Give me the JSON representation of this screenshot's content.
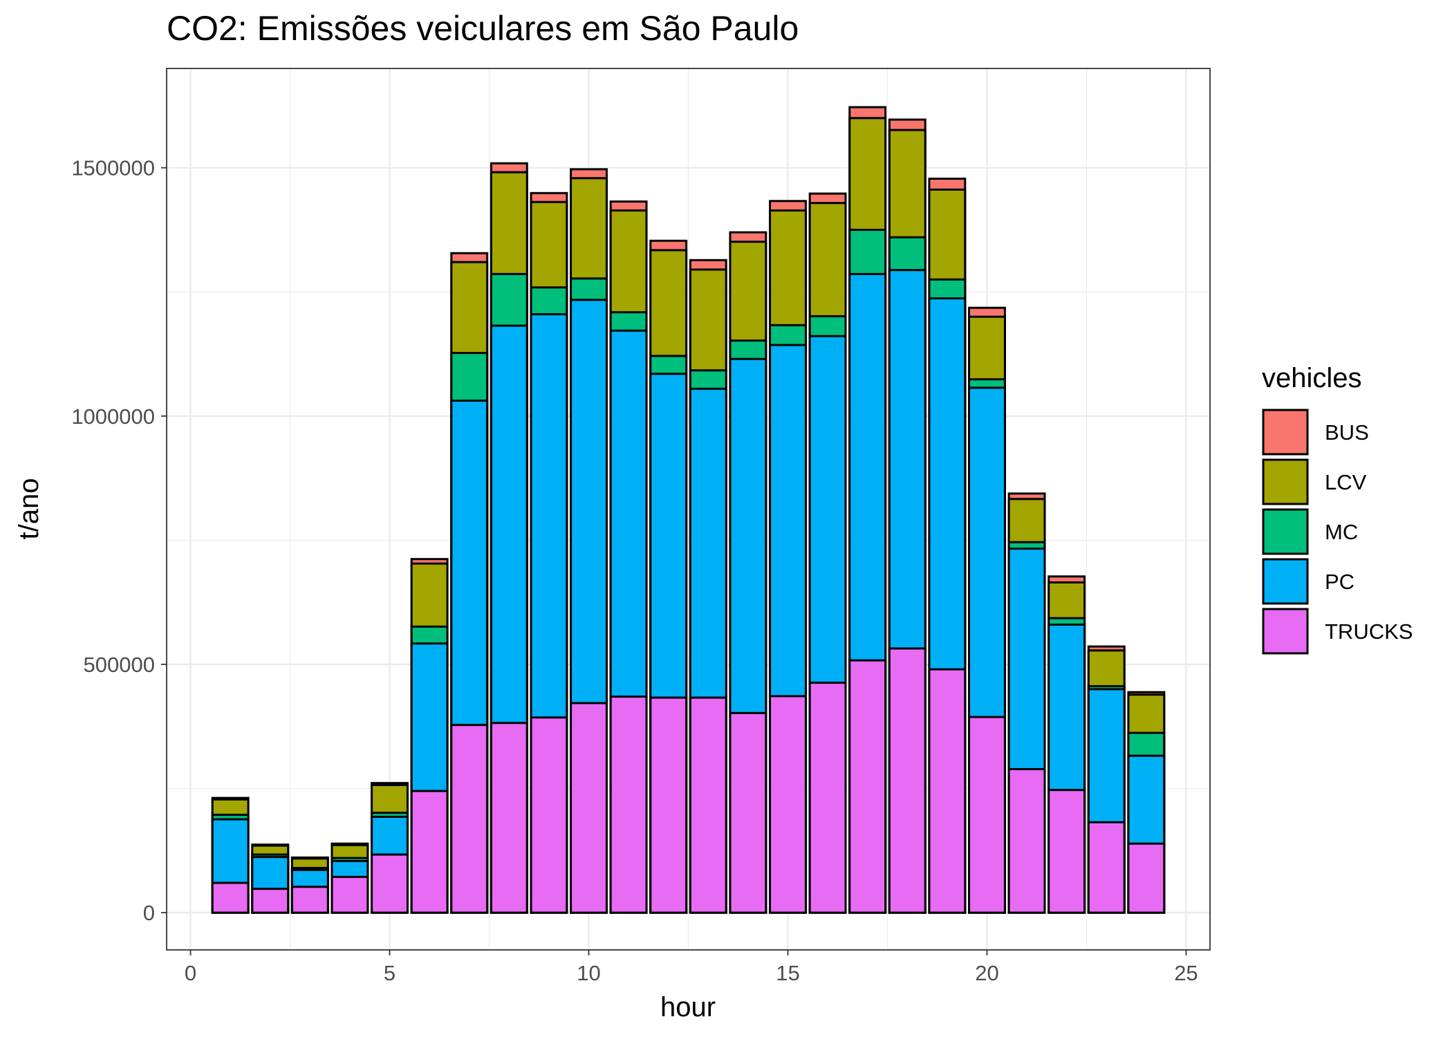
{
  "chart_data": {
    "type": "bar",
    "stacked": true,
    "title": "CO2: Emissões veiculares em São Paulo",
    "xlabel": "hour",
    "ylabel": "t/ano",
    "xlim": [
      -0.6,
      25.6
    ],
    "ylim": [
      -75000,
      1700000
    ],
    "x_ticks": [
      0,
      5,
      10,
      15,
      20,
      25
    ],
    "y_ticks": [
      0,
      500000,
      1000000,
      1500000
    ],
    "x_tick_labels": [
      "0",
      "5",
      "10",
      "15",
      "20",
      "25"
    ],
    "y_tick_labels": [
      "0",
      "500000",
      "1000000",
      "1500000"
    ],
    "grid": true,
    "legend_title": "vehicles",
    "legend_position": "right",
    "x": [
      1,
      2,
      3,
      4,
      5,
      6,
      7,
      8,
      9,
      10,
      11,
      12,
      13,
      14,
      15,
      16,
      17,
      18,
      19,
      20,
      21,
      22,
      23,
      24
    ],
    "series": [
      {
        "name": "TRUCKS",
        "color": "#E76BF3",
        "values": [
          60000,
          48000,
          52000,
          72000,
          117000,
          245000,
          378000,
          382000,
          393000,
          422000,
          435000,
          433000,
          433000,
          402000,
          436000,
          463000,
          508000,
          532000,
          490000,
          394000,
          289000,
          247000,
          182000,
          139000
        ]
      },
      {
        "name": "PC",
        "color": "#00B0F6",
        "values": [
          128000,
          64000,
          34000,
          32000,
          76000,
          297000,
          653000,
          800000,
          812000,
          812000,
          737000,
          652000,
          622000,
          713000,
          707000,
          698000,
          778000,
          762000,
          747000,
          663000,
          444000,
          333000,
          268000,
          177000
        ]
      },
      {
        "name": "MC",
        "color": "#00BF7D",
        "values": [
          9000,
          5000,
          4000,
          6000,
          8000,
          34000,
          96000,
          104000,
          54000,
          43000,
          37000,
          36000,
          37000,
          37000,
          40000,
          40000,
          89000,
          66000,
          38000,
          17000,
          13000,
          13000,
          6000,
          46000
        ]
      },
      {
        "name": "LCV",
        "color": "#A3A500",
        "values": [
          31000,
          18000,
          19000,
          26000,
          56000,
          127000,
          183000,
          205000,
          172000,
          202000,
          205000,
          213000,
          203000,
          199000,
          231000,
          228000,
          225000,
          216000,
          181000,
          126000,
          87000,
          72000,
          72000,
          77000
        ]
      },
      {
        "name": "BUS",
        "color": "#F8766D",
        "values": [
          3000,
          2000,
          2000,
          3000,
          4000,
          9000,
          18000,
          18000,
          18000,
          18000,
          18000,
          19000,
          19000,
          19000,
          19000,
          19000,
          22000,
          21000,
          22000,
          18000,
          11000,
          12000,
          8000,
          5000
        ]
      }
    ]
  }
}
